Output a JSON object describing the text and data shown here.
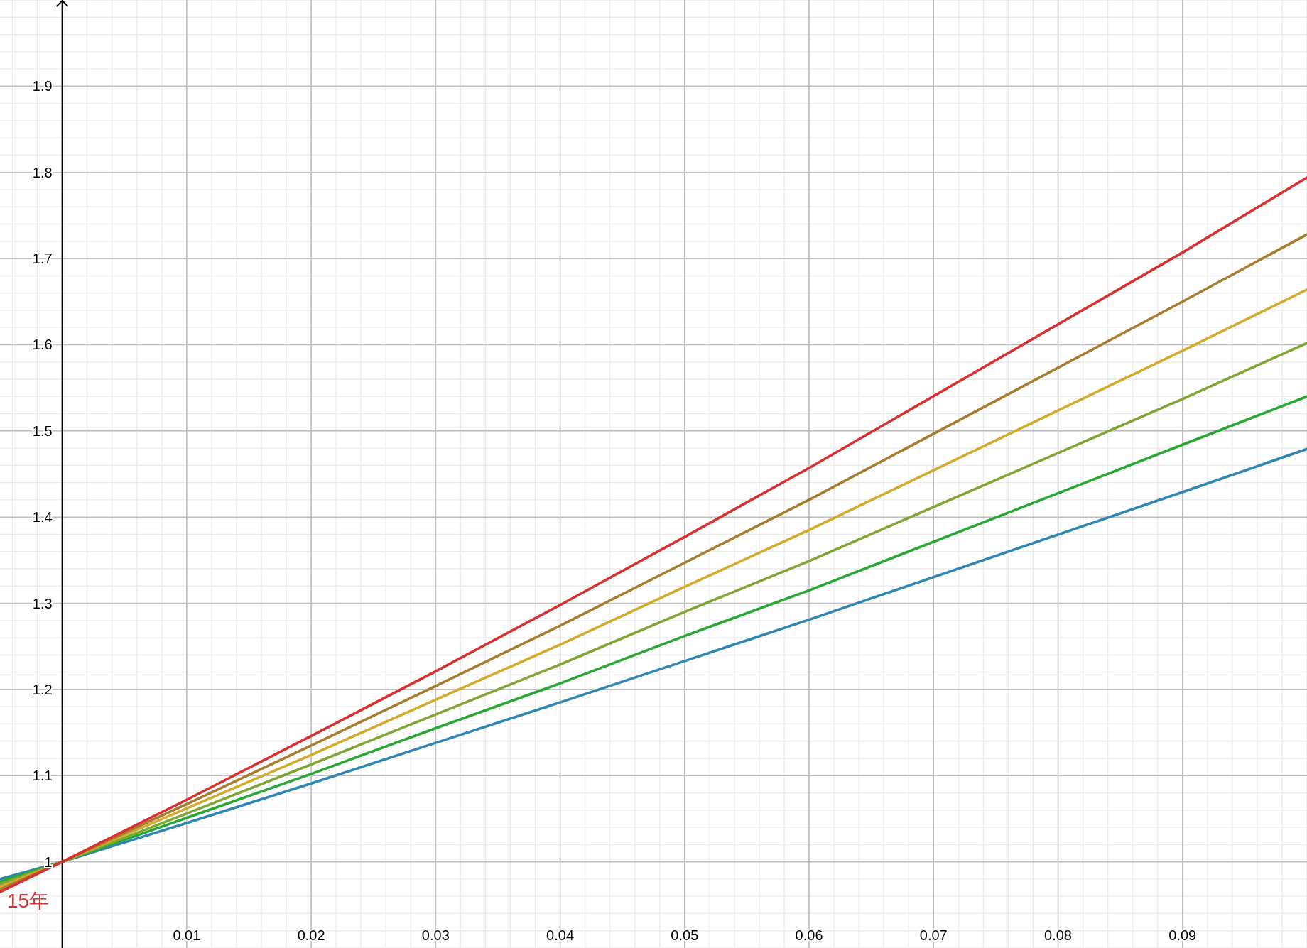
{
  "chart_data": {
    "type": "line",
    "xlim": [
      -0.005,
      0.1
    ],
    "ylim": [
      0.9,
      2.0
    ],
    "xticks": [
      0.01,
      0.02,
      0.03,
      0.04,
      0.05,
      0.06,
      0.07,
      0.08,
      0.09
    ],
    "yticks": [
      1,
      1.1,
      1.2,
      1.3,
      1.4,
      1.5,
      1.6,
      1.7,
      1.8,
      1.9
    ],
    "grid": true,
    "x": [
      -0.005,
      0,
      0.01,
      0.02,
      0.03,
      0.04,
      0.05,
      0.06,
      0.09,
      0.1
    ],
    "series": [
      {
        "color": "#2e86b4",
        "values": [
          0.98,
          1,
          1.045,
          1.091,
          1.138,
          1.185,
          1.233,
          1.281,
          1.429,
          1.479
        ]
      },
      {
        "color": "#26a832",
        "values": [
          0.977,
          1,
          1.051,
          1.102,
          1.155,
          1.207,
          1.262,
          1.315,
          1.484,
          1.54
        ]
      },
      {
        "color": "#7fa632",
        "values": [
          0.974,
          1,
          1.056,
          1.113,
          1.171,
          1.229,
          1.29,
          1.349,
          1.537,
          1.602
        ]
      },
      {
        "color": "#d4aa2c",
        "values": [
          0.971,
          1,
          1.062,
          1.124,
          1.188,
          1.252,
          1.319,
          1.385,
          1.593,
          1.664
        ]
      },
      {
        "color": "#a87b2e",
        "values": [
          0.968,
          1,
          1.067,
          1.135,
          1.204,
          1.274,
          1.347,
          1.42,
          1.65,
          1.728
        ]
      },
      {
        "name": "15年",
        "color": "#d92f2f",
        "values": [
          0.965,
          1,
          1.072,
          1.146,
          1.221,
          1.298,
          1.377,
          1.457,
          1.707,
          1.794
        ]
      }
    ]
  }
}
